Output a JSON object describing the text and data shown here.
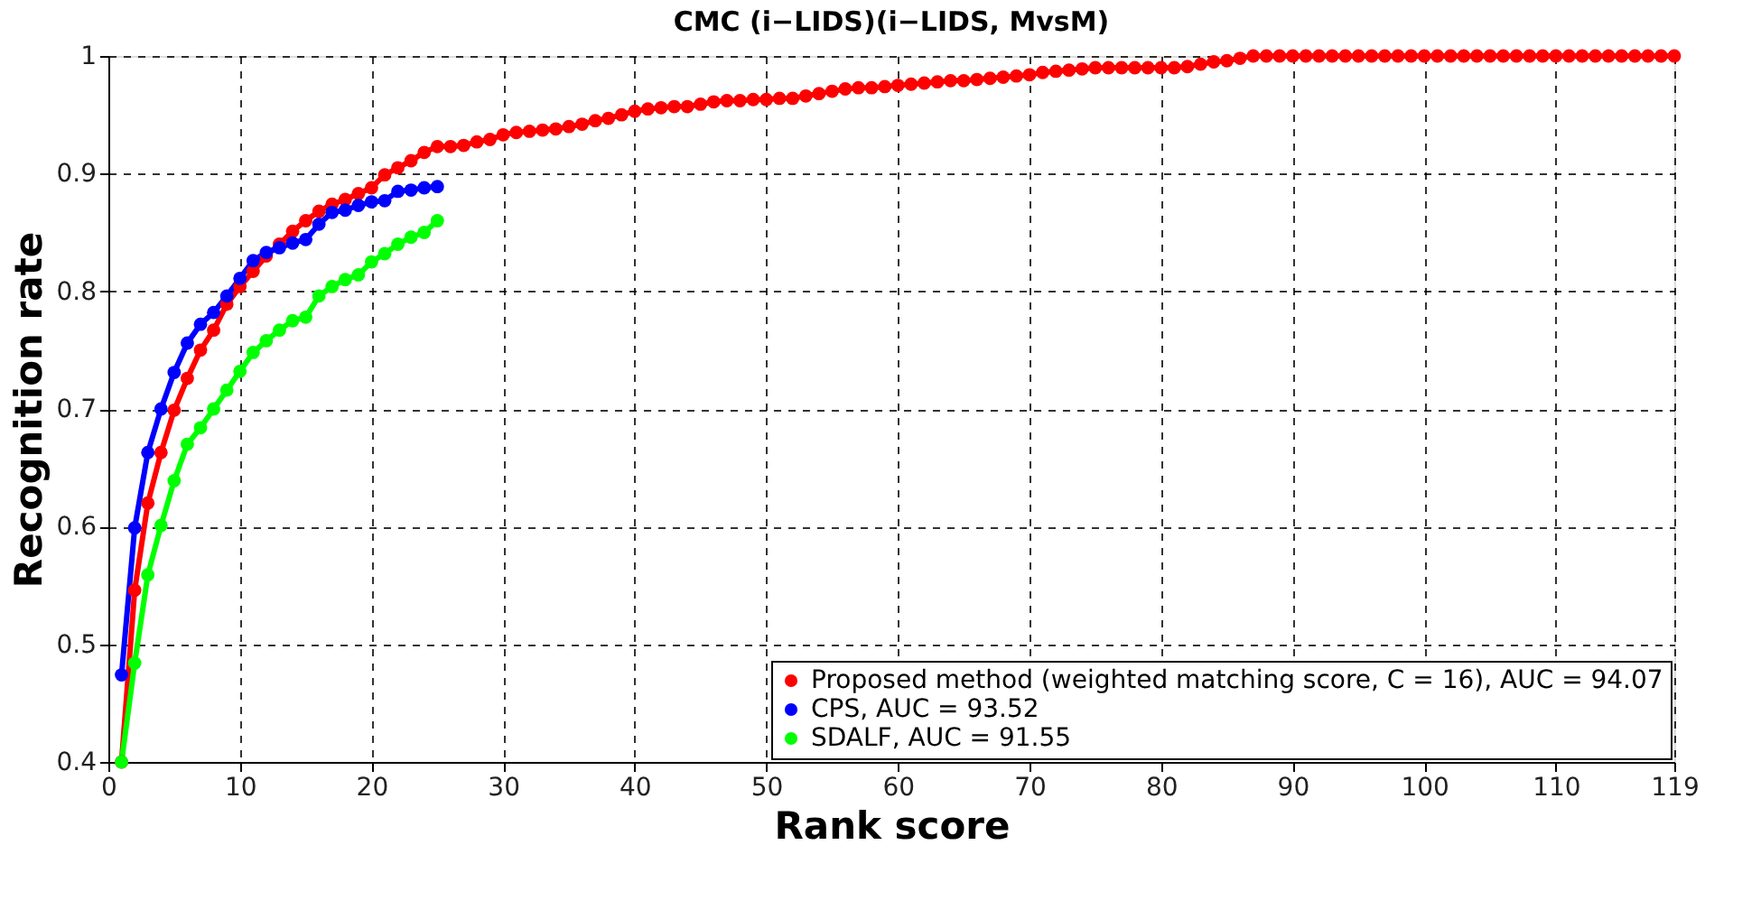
{
  "chart_data": {
    "type": "line",
    "title": "CMC (i−LIDS)(i−LIDS, MvsM)",
    "xlabel": "Rank score",
    "ylabel": "Recognition rate",
    "xlim": [
      0,
      119
    ],
    "xticks": [
      0,
      10,
      20,
      30,
      40,
      50,
      60,
      70,
      80,
      90,
      100,
      110,
      119
    ],
    "ylim": [
      0.4,
      1
    ],
    "yticks": [
      0.4,
      0.5,
      0.6,
      0.7,
      0.8,
      0.9,
      1
    ],
    "grid": true,
    "legend": "bottom right",
    "marker": "circle",
    "line_style": "solid",
    "series": [
      {
        "name": "Proposed method (weighted matching score, C = 16), AUC = 94.07",
        "color": "#ff0000",
        "x": [
          1,
          2,
          3,
          4,
          5,
          6,
          7,
          8,
          9,
          10,
          11,
          12,
          13,
          14,
          15,
          16,
          17,
          18,
          19,
          20,
          21,
          22,
          23,
          24,
          25,
          26,
          27,
          28,
          29,
          30,
          31,
          32,
          33,
          34,
          35,
          36,
          37,
          38,
          39,
          40,
          41,
          42,
          43,
          44,
          45,
          46,
          47,
          48,
          49,
          50,
          51,
          52,
          53,
          54,
          55,
          56,
          57,
          58,
          59,
          60,
          61,
          62,
          63,
          64,
          65,
          66,
          67,
          68,
          69,
          70,
          71,
          72,
          73,
          74,
          75,
          76,
          77,
          78,
          79,
          80,
          81,
          82,
          83,
          84,
          85,
          86,
          87,
          88,
          89,
          90,
          91,
          92,
          93,
          94,
          95,
          96,
          97,
          98,
          99,
          100,
          101,
          102,
          103,
          104,
          105,
          106,
          107,
          108,
          109,
          110,
          111,
          112,
          113,
          114,
          115,
          116,
          117,
          118,
          119
        ],
        "values": [
          0.4,
          0.546,
          0.62,
          0.663,
          0.699,
          0.726,
          0.75,
          0.767,
          0.789,
          0.804,
          0.817,
          0.83,
          0.84,
          0.851,
          0.86,
          0.868,
          0.874,
          0.878,
          0.883,
          0.888,
          0.899,
          0.905,
          0.911,
          0.918,
          0.923,
          0.923,
          0.924,
          0.927,
          0.929,
          0.933,
          0.935,
          0.936,
          0.937,
          0.938,
          0.94,
          0.942,
          0.945,
          0.947,
          0.95,
          0.953,
          0.955,
          0.956,
          0.957,
          0.957,
          0.959,
          0.961,
          0.962,
          0.962,
          0.963,
          0.963,
          0.964,
          0.964,
          0.966,
          0.968,
          0.97,
          0.972,
          0.973,
          0.973,
          0.974,
          0.975,
          0.976,
          0.977,
          0.978,
          0.979,
          0.979,
          0.98,
          0.981,
          0.982,
          0.983,
          0.984,
          0.986,
          0.987,
          0.988,
          0.989,
          0.99,
          0.99,
          0.99,
          0.99,
          0.99,
          0.99,
          0.99,
          0.991,
          0.993,
          0.995,
          0.996,
          0.998,
          1,
          1,
          1,
          1,
          1,
          1,
          1,
          1,
          1,
          1,
          1,
          1,
          1,
          1,
          1,
          1,
          1,
          1,
          1,
          1,
          1,
          1,
          1,
          1,
          1,
          1,
          1,
          1,
          1,
          1,
          1,
          1,
          1
        ]
      },
      {
        "name": "CPS, AUC = 93.52",
        "color": "#0000ff",
        "x": [
          1,
          2,
          3,
          4,
          5,
          6,
          7,
          8,
          9,
          10,
          11,
          12,
          13,
          14,
          15,
          16,
          17,
          18,
          19,
          20,
          21,
          22,
          23,
          24,
          25
        ],
        "values": [
          0.474,
          0.599,
          0.663,
          0.7,
          0.731,
          0.756,
          0.772,
          0.782,
          0.796,
          0.811,
          0.826,
          0.833,
          0.837,
          0.841,
          0.844,
          0.857,
          0.867,
          0.869,
          0.873,
          0.876,
          0.877,
          0.885,
          0.886,
          0.888,
          0.889
        ]
      },
      {
        "name": "SDALF, AUC = 91.55",
        "color": "#00ff00",
        "x": [
          1,
          2,
          3,
          4,
          5,
          6,
          7,
          8,
          9,
          10,
          11,
          12,
          13,
          14,
          15,
          16,
          17,
          18,
          19,
          20,
          21,
          22,
          23,
          24,
          25
        ],
        "values": [
          0.4,
          0.484,
          0.559,
          0.601,
          0.639,
          0.67,
          0.684,
          0.7,
          0.716,
          0.732,
          0.748,
          0.758,
          0.767,
          0.775,
          0.778,
          0.796,
          0.804,
          0.81,
          0.814,
          0.825,
          0.832,
          0.84,
          0.846,
          0.85,
          0.86
        ]
      }
    ]
  }
}
